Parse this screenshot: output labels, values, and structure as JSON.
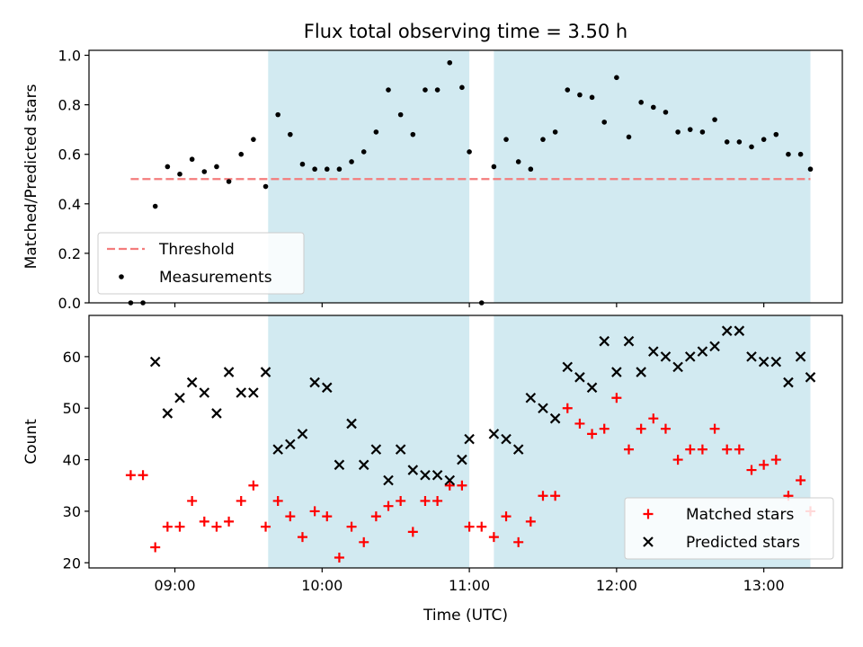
{
  "chart_data": [
    {
      "type": "scatter",
      "title": "Flux total observing time = 3.50 h",
      "xlabel": "",
      "ylabel": "Matched/Predicted stars",
      "xlim": [
        "08:25",
        "13:32"
      ],
      "ylim": [
        0,
        1.02
      ],
      "x_ticks": [
        "09:00",
        "10:00",
        "11:00",
        "12:00",
        "13:00"
      ],
      "y_ticks": [
        "0.0",
        "0.2",
        "0.4",
        "0.6",
        "0.8",
        "1.0"
      ],
      "grid": false,
      "legend_position": "lower-left",
      "shaded_intervals": [
        [
          "09:38",
          "11:00"
        ],
        [
          "11:10",
          "13:19"
        ]
      ],
      "shade_color": "#add8e6",
      "threshold": {
        "name": "Threshold",
        "value": 0.5,
        "x_range": [
          "08:42",
          "13:19"
        ],
        "color": "#f47c7c",
        "style": "dashed"
      },
      "series": [
        {
          "name": "Measurements",
          "color": "#000000",
          "marker": "dot",
          "points": [
            [
              "08:42",
              0.0
            ],
            [
              "08:47",
              0.0
            ],
            [
              "08:52",
              0.39
            ],
            [
              "08:57",
              0.55
            ],
            [
              "09:02",
              0.52
            ],
            [
              "09:07",
              0.58
            ],
            [
              "09:12",
              0.53
            ],
            [
              "09:17",
              0.55
            ],
            [
              "09:22",
              0.49
            ],
            [
              "09:27",
              0.6
            ],
            [
              "09:32",
              0.66
            ],
            [
              "09:37",
              0.47
            ],
            [
              "09:42",
              0.76
            ],
            [
              "09:47",
              0.68
            ],
            [
              "09:52",
              0.56
            ],
            [
              "09:57",
              0.54
            ],
            [
              "10:02",
              0.54
            ],
            [
              "10:07",
              0.54
            ],
            [
              "10:12",
              0.57
            ],
            [
              "10:17",
              0.61
            ],
            [
              "10:22",
              0.69
            ],
            [
              "10:27",
              0.86
            ],
            [
              "10:32",
              0.76
            ],
            [
              "10:37",
              0.68
            ],
            [
              "10:42",
              0.86
            ],
            [
              "10:47",
              0.86
            ],
            [
              "10:52",
              0.97
            ],
            [
              "10:57",
              0.87
            ],
            [
              "11:00",
              0.61
            ],
            [
              "11:05",
              0.0
            ],
            [
              "11:10",
              0.55
            ],
            [
              "11:15",
              0.66
            ],
            [
              "11:20",
              0.57
            ],
            [
              "11:25",
              0.54
            ],
            [
              "11:30",
              0.66
            ],
            [
              "11:35",
              0.69
            ],
            [
              "11:40",
              0.86
            ],
            [
              "11:45",
              0.84
            ],
            [
              "11:50",
              0.83
            ],
            [
              "11:55",
              0.73
            ],
            [
              "12:00",
              0.91
            ],
            [
              "12:05",
              0.67
            ],
            [
              "12:10",
              0.81
            ],
            [
              "12:15",
              0.79
            ],
            [
              "12:20",
              0.77
            ],
            [
              "12:25",
              0.69
            ],
            [
              "12:30",
              0.7
            ],
            [
              "12:35",
              0.69
            ],
            [
              "12:40",
              0.74
            ],
            [
              "12:45",
              0.65
            ],
            [
              "12:50",
              0.65
            ],
            [
              "12:55",
              0.63
            ],
            [
              "13:00",
              0.66
            ],
            [
              "13:05",
              0.68
            ],
            [
              "13:10",
              0.6
            ],
            [
              "13:15",
              0.6
            ],
            [
              "13:19",
              0.54
            ]
          ]
        }
      ]
    },
    {
      "type": "scatter",
      "title": "",
      "xlabel": "Time (UTC)",
      "ylabel": "Count",
      "xlim": [
        "08:25",
        "13:32"
      ],
      "ylim": [
        19,
        68
      ],
      "x_ticks": [
        "09:00",
        "10:00",
        "11:00",
        "12:00",
        "13:00"
      ],
      "y_ticks": [
        "20",
        "30",
        "40",
        "50",
        "60"
      ],
      "grid": false,
      "legend_position": "lower-right",
      "shaded_intervals": [
        [
          "09:38",
          "11:00"
        ],
        [
          "11:10",
          "13:19"
        ]
      ],
      "shade_color": "#add8e6",
      "series": [
        {
          "name": "Matched stars",
          "color": "#ff0000",
          "marker": "plus",
          "points": [
            [
              "08:42",
              37
            ],
            [
              "08:47",
              37
            ],
            [
              "08:52",
              23
            ],
            [
              "08:57",
              27
            ],
            [
              "09:02",
              27
            ],
            [
              "09:07",
              32
            ],
            [
              "09:12",
              28
            ],
            [
              "09:17",
              27
            ],
            [
              "09:22",
              28
            ],
            [
              "09:27",
              32
            ],
            [
              "09:32",
              35
            ],
            [
              "09:37",
              27
            ],
            [
              "09:42",
              32
            ],
            [
              "09:47",
              29
            ],
            [
              "09:52",
              25
            ],
            [
              "09:57",
              30
            ],
            [
              "10:02",
              29
            ],
            [
              "10:07",
              21
            ],
            [
              "10:12",
              27
            ],
            [
              "10:17",
              24
            ],
            [
              "10:22",
              29
            ],
            [
              "10:27",
              31
            ],
            [
              "10:32",
              32
            ],
            [
              "10:37",
              26
            ],
            [
              "10:42",
              32
            ],
            [
              "10:47",
              32
            ],
            [
              "10:52",
              35
            ],
            [
              "10:57",
              35
            ],
            [
              "11:00",
              27
            ],
            [
              "11:05",
              27
            ],
            [
              "11:10",
              25
            ],
            [
              "11:15",
              29
            ],
            [
              "11:20",
              24
            ],
            [
              "11:25",
              28
            ],
            [
              "11:30",
              33
            ],
            [
              "11:35",
              33
            ],
            [
              "11:40",
              50
            ],
            [
              "11:45",
              47
            ],
            [
              "11:50",
              45
            ],
            [
              "11:55",
              46
            ],
            [
              "12:00",
              52
            ],
            [
              "12:05",
              42
            ],
            [
              "12:10",
              46
            ],
            [
              "12:15",
              48
            ],
            [
              "12:20",
              46
            ],
            [
              "12:25",
              40
            ],
            [
              "12:30",
              42
            ],
            [
              "12:35",
              42
            ],
            [
              "12:40",
              46
            ],
            [
              "12:45",
              42
            ],
            [
              "12:50",
              42
            ],
            [
              "12:55",
              38
            ],
            [
              "13:00",
              39
            ],
            [
              "13:05",
              40
            ],
            [
              "13:10",
              33
            ],
            [
              "13:15",
              36
            ],
            [
              "13:19",
              30
            ]
          ]
        },
        {
          "name": "Predicted stars",
          "color": "#000000",
          "marker": "x",
          "points": [
            [
              "08:52",
              59
            ],
            [
              "08:57",
              49
            ],
            [
              "09:02",
              52
            ],
            [
              "09:07",
              55
            ],
            [
              "09:12",
              53
            ],
            [
              "09:17",
              49
            ],
            [
              "09:22",
              57
            ],
            [
              "09:27",
              53
            ],
            [
              "09:32",
              53
            ],
            [
              "09:37",
              57
            ],
            [
              "09:42",
              42
            ],
            [
              "09:47",
              43
            ],
            [
              "09:52",
              45
            ],
            [
              "09:57",
              55
            ],
            [
              "10:02",
              54
            ],
            [
              "10:07",
              39
            ],
            [
              "10:12",
              47
            ],
            [
              "10:17",
              39
            ],
            [
              "10:22",
              42
            ],
            [
              "10:27",
              36
            ],
            [
              "10:32",
              42
            ],
            [
              "10:37",
              38
            ],
            [
              "10:42",
              37
            ],
            [
              "10:47",
              37
            ],
            [
              "10:52",
              36
            ],
            [
              "10:57",
              40
            ],
            [
              "11:00",
              44
            ],
            [
              "11:10",
              45
            ],
            [
              "11:15",
              44
            ],
            [
              "11:20",
              42
            ],
            [
              "11:25",
              52
            ],
            [
              "11:30",
              50
            ],
            [
              "11:35",
              48
            ],
            [
              "11:40",
              58
            ],
            [
              "11:45",
              56
            ],
            [
              "11:50",
              54
            ],
            [
              "11:55",
              63
            ],
            [
              "12:00",
              57
            ],
            [
              "12:05",
              63
            ],
            [
              "12:10",
              57
            ],
            [
              "12:15",
              61
            ],
            [
              "12:20",
              60
            ],
            [
              "12:25",
              58
            ],
            [
              "12:30",
              60
            ],
            [
              "12:35",
              61
            ],
            [
              "12:40",
              62
            ],
            [
              "12:45",
              65
            ],
            [
              "12:50",
              65
            ],
            [
              "12:55",
              60
            ],
            [
              "13:00",
              59
            ],
            [
              "13:05",
              59
            ],
            [
              "13:10",
              55
            ],
            [
              "13:15",
              60
            ],
            [
              "13:19",
              56
            ]
          ]
        }
      ]
    }
  ]
}
